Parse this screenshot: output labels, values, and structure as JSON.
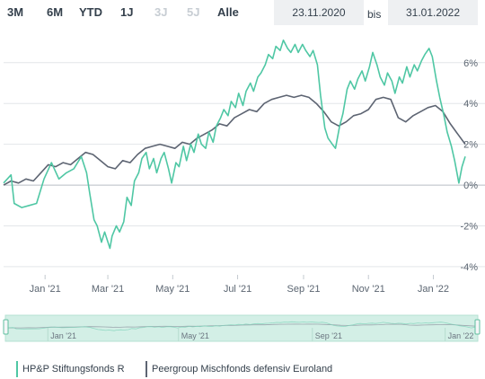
{
  "toolbar": {
    "ranges": [
      {
        "label": "3M",
        "enabled": true
      },
      {
        "label": "6M",
        "enabled": true
      },
      {
        "label": "YTD",
        "enabled": true
      },
      {
        "label": "1J",
        "enabled": true
      },
      {
        "label": "3J",
        "enabled": false
      },
      {
        "label": "5J",
        "enabled": false
      },
      {
        "label": "Alle",
        "enabled": true
      }
    ],
    "date_from": "23.11.2020",
    "date_separator": "bis",
    "date_to": "31.01.2022"
  },
  "colors": {
    "series_a": "#4fc7a4",
    "series_b": "#5d6472",
    "grid": "#e3e6e9",
    "zero": "#b8bec4",
    "navigator_fill": "#d3efe6"
  },
  "chart_data": {
    "type": "line",
    "x_range": [
      "2020-11-23",
      "2022-01-31"
    ],
    "ylim": [
      -4.4,
      7.4
    ],
    "y_ticks": [
      6,
      4,
      2,
      0,
      -2,
      -4
    ],
    "y_tick_labels": [
      "6%",
      "4%",
      "2%",
      "0%",
      "-2%",
      "-4%"
    ],
    "x_ticks": [
      "2021-01-01",
      "2021-03-01",
      "2021-05-01",
      "2021-07-01",
      "2021-09-01",
      "2021-11-01",
      "2022-01-01"
    ],
    "x_tick_labels": [
      "Jan '21",
      "Mar '21",
      "May '21",
      "Jul '21",
      "Sep '21",
      "Nov '21",
      "Jan '22"
    ],
    "navigator_tick_labels": [
      "Jan '21",
      "May '21",
      "Sep '21",
      "Jan '22"
    ],
    "grid": true,
    "legend_position": "bottom-left",
    "series": [
      {
        "name": "HP&P Stiftungsfonds R",
        "color": "#4fc7a4",
        "points": [
          [
            "2020-11-23",
            0.1
          ],
          [
            "2020-11-30",
            0.5
          ],
          [
            "2020-12-03",
            -0.9
          ],
          [
            "2020-12-10",
            -1.1
          ],
          [
            "2020-12-17",
            -1.0
          ],
          [
            "2020-12-24",
            -0.9
          ],
          [
            "2020-12-31",
            0.3
          ],
          [
            "2021-01-07",
            1.1
          ],
          [
            "2021-01-14",
            0.3
          ],
          [
            "2021-01-21",
            0.6
          ],
          [
            "2021-01-28",
            0.8
          ],
          [
            "2021-02-04",
            1.4
          ],
          [
            "2021-02-09",
            0.6
          ],
          [
            "2021-02-12",
            -0.4
          ],
          [
            "2021-02-16",
            -1.7
          ],
          [
            "2021-02-19",
            -2.0
          ],
          [
            "2021-02-23",
            -2.8
          ],
          [
            "2021-02-26",
            -2.3
          ],
          [
            "2021-03-03",
            -3.1
          ],
          [
            "2021-03-05",
            -2.5
          ],
          [
            "2021-03-09",
            -2.0
          ],
          [
            "2021-03-12",
            -2.3
          ],
          [
            "2021-03-16",
            -1.8
          ],
          [
            "2021-03-19",
            -0.6
          ],
          [
            "2021-03-23",
            -1.0
          ],
          [
            "2021-03-26",
            0.2
          ],
          [
            "2021-03-30",
            0.6
          ],
          [
            "2021-04-02",
            1.3
          ],
          [
            "2021-04-06",
            1.6
          ],
          [
            "2021-04-09",
            0.8
          ],
          [
            "2021-04-13",
            1.3
          ],
          [
            "2021-04-16",
            0.6
          ],
          [
            "2021-04-20",
            1.3
          ],
          [
            "2021-04-23",
            1.6
          ],
          [
            "2021-04-27",
            0.8
          ],
          [
            "2021-04-30",
            0.1
          ],
          [
            "2021-05-04",
            1.1
          ],
          [
            "2021-05-07",
            0.9
          ],
          [
            "2021-05-11",
            1.9
          ],
          [
            "2021-05-14",
            1.2
          ],
          [
            "2021-05-18",
            2.0
          ],
          [
            "2021-05-21",
            1.6
          ],
          [
            "2021-05-25",
            2.5
          ],
          [
            "2021-05-28",
            2.0
          ],
          [
            "2021-06-01",
            1.8
          ],
          [
            "2021-06-04",
            2.6
          ],
          [
            "2021-06-08",
            2.1
          ],
          [
            "2021-06-11",
            2.9
          ],
          [
            "2021-06-15",
            3.3
          ],
          [
            "2021-06-18",
            3.7
          ],
          [
            "2021-06-22",
            3.4
          ],
          [
            "2021-06-25",
            4.1
          ],
          [
            "2021-06-29",
            3.8
          ],
          [
            "2021-07-02",
            4.5
          ],
          [
            "2021-07-06",
            3.9
          ],
          [
            "2021-07-09",
            4.6
          ],
          [
            "2021-07-13",
            5.0
          ],
          [
            "2021-07-16",
            4.6
          ],
          [
            "2021-07-20",
            5.3
          ],
          [
            "2021-07-23",
            5.5
          ],
          [
            "2021-07-27",
            5.9
          ],
          [
            "2021-07-30",
            6.4
          ],
          [
            "2021-08-03",
            6.2
          ],
          [
            "2021-08-06",
            6.8
          ],
          [
            "2021-08-10",
            6.6
          ],
          [
            "2021-08-13",
            7.1
          ],
          [
            "2021-08-17",
            6.7
          ],
          [
            "2021-08-20",
            6.5
          ],
          [
            "2021-08-24",
            6.9
          ],
          [
            "2021-08-27",
            6.5
          ],
          [
            "2021-08-31",
            6.9
          ],
          [
            "2021-09-03",
            6.6
          ],
          [
            "2021-09-07",
            6.3
          ],
          [
            "2021-09-10",
            6.6
          ],
          [
            "2021-09-14",
            5.9
          ],
          [
            "2021-09-17",
            4.4
          ],
          [
            "2021-09-21",
            2.8
          ],
          [
            "2021-09-24",
            2.3
          ],
          [
            "2021-09-28",
            2.0
          ],
          [
            "2021-10-01",
            1.8
          ],
          [
            "2021-10-05",
            2.9
          ],
          [
            "2021-10-08",
            3.5
          ],
          [
            "2021-10-12",
            4.7
          ],
          [
            "2021-10-15",
            5.1
          ],
          [
            "2021-10-19",
            4.7
          ],
          [
            "2021-10-22",
            5.2
          ],
          [
            "2021-10-26",
            5.6
          ],
          [
            "2021-10-29",
            5.1
          ],
          [
            "2021-11-02",
            5.8
          ],
          [
            "2021-11-05",
            6.5
          ],
          [
            "2021-11-09",
            5.9
          ],
          [
            "2021-11-12",
            5.3
          ],
          [
            "2021-11-16",
            4.9
          ],
          [
            "2021-11-19",
            5.5
          ],
          [
            "2021-11-23",
            5.1
          ],
          [
            "2021-11-26",
            4.5
          ],
          [
            "2021-11-30",
            5.3
          ],
          [
            "2021-12-03",
            5.0
          ],
          [
            "2021-12-07",
            5.8
          ],
          [
            "2021-12-10",
            5.3
          ],
          [
            "2021-12-14",
            5.9
          ],
          [
            "2021-12-17",
            5.6
          ],
          [
            "2021-12-21",
            6.1
          ],
          [
            "2021-12-24",
            6.4
          ],
          [
            "2021-12-28",
            6.7
          ],
          [
            "2021-12-31",
            6.3
          ],
          [
            "2022-01-04",
            5.1
          ],
          [
            "2022-01-07",
            4.3
          ],
          [
            "2022-01-11",
            3.4
          ],
          [
            "2022-01-14",
            2.6
          ],
          [
            "2022-01-18",
            1.9
          ],
          [
            "2022-01-21",
            1.2
          ],
          [
            "2022-01-25",
            0.1
          ],
          [
            "2022-01-28",
            0.9
          ],
          [
            "2022-01-31",
            1.4
          ]
        ]
      },
      {
        "name": "Peergroup Mischfonds defensiv Euroland",
        "color": "#5d6472",
        "points": [
          [
            "2020-11-23",
            0.0
          ],
          [
            "2020-11-30",
            0.2
          ],
          [
            "2020-12-07",
            0.1
          ],
          [
            "2020-12-14",
            0.3
          ],
          [
            "2020-12-21",
            0.2
          ],
          [
            "2020-12-28",
            0.6
          ],
          [
            "2021-01-04",
            1.0
          ],
          [
            "2021-01-11",
            0.9
          ],
          [
            "2021-01-18",
            1.1
          ],
          [
            "2021-01-25",
            1.0
          ],
          [
            "2021-02-01",
            1.3
          ],
          [
            "2021-02-08",
            1.6
          ],
          [
            "2021-02-15",
            1.5
          ],
          [
            "2021-02-22",
            1.2
          ],
          [
            "2021-03-01",
            0.9
          ],
          [
            "2021-03-08",
            0.8
          ],
          [
            "2021-03-15",
            1.2
          ],
          [
            "2021-03-22",
            1.1
          ],
          [
            "2021-03-29",
            1.5
          ],
          [
            "2021-04-05",
            1.8
          ],
          [
            "2021-04-12",
            1.9
          ],
          [
            "2021-04-19",
            2.0
          ],
          [
            "2021-04-26",
            1.9
          ],
          [
            "2021-05-03",
            1.8
          ],
          [
            "2021-05-10",
            2.1
          ],
          [
            "2021-05-17",
            2.0
          ],
          [
            "2021-05-24",
            2.3
          ],
          [
            "2021-05-31",
            2.5
          ],
          [
            "2021-06-07",
            2.7
          ],
          [
            "2021-06-14",
            3.0
          ],
          [
            "2021-06-21",
            2.9
          ],
          [
            "2021-06-28",
            3.3
          ],
          [
            "2021-07-05",
            3.5
          ],
          [
            "2021-07-12",
            3.7
          ],
          [
            "2021-07-19",
            3.6
          ],
          [
            "2021-07-26",
            4.0
          ],
          [
            "2021-08-02",
            4.2
          ],
          [
            "2021-08-09",
            4.3
          ],
          [
            "2021-08-16",
            4.4
          ],
          [
            "2021-08-23",
            4.3
          ],
          [
            "2021-08-30",
            4.4
          ],
          [
            "2021-09-06",
            4.3
          ],
          [
            "2021-09-13",
            4.0
          ],
          [
            "2021-09-20",
            3.6
          ],
          [
            "2021-09-27",
            3.1
          ],
          [
            "2021-10-04",
            2.9
          ],
          [
            "2021-10-11",
            3.1
          ],
          [
            "2021-10-18",
            3.4
          ],
          [
            "2021-10-25",
            3.5
          ],
          [
            "2021-11-01",
            3.7
          ],
          [
            "2021-11-08",
            4.2
          ],
          [
            "2021-11-15",
            4.3
          ],
          [
            "2021-11-22",
            4.2
          ],
          [
            "2021-11-29",
            3.3
          ],
          [
            "2021-12-06",
            3.1
          ],
          [
            "2021-12-13",
            3.4
          ],
          [
            "2021-12-20",
            3.6
          ],
          [
            "2021-12-27",
            3.8
          ],
          [
            "2022-01-03",
            3.9
          ],
          [
            "2022-01-10",
            3.6
          ],
          [
            "2022-01-17",
            3.0
          ],
          [
            "2022-01-24",
            2.5
          ],
          [
            "2022-01-31",
            2.0
          ]
        ]
      }
    ]
  }
}
